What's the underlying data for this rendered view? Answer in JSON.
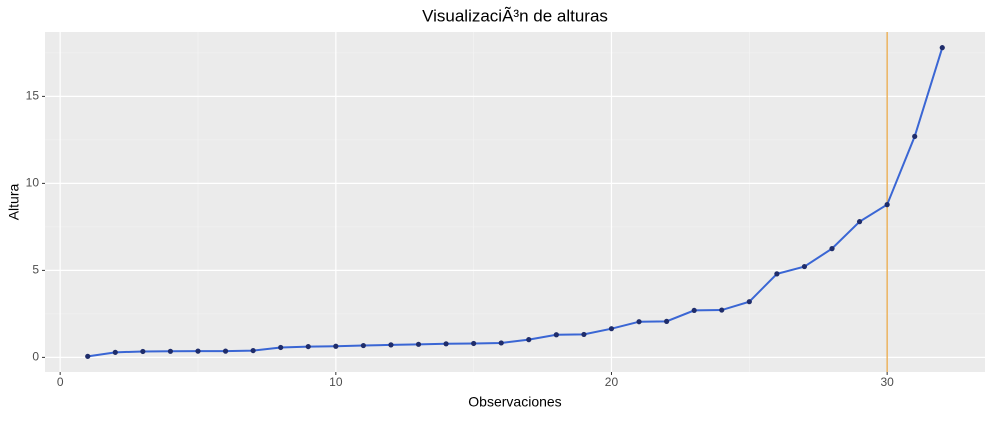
{
  "chart_data": {
    "type": "line",
    "title": "VisualizaciÃ³n de alturas",
    "x_label": "Observaciones",
    "y_label": "Altura",
    "x": [
      1,
      2,
      3,
      4,
      5,
      6,
      7,
      8,
      9,
      10,
      11,
      12,
      13,
      14,
      15,
      16,
      17,
      18,
      19,
      20,
      21,
      22,
      23,
      24,
      25,
      26,
      27,
      28,
      29,
      30,
      31,
      32
    ],
    "series": [
      {
        "name": "Altura",
        "color": "#3a66d4",
        "point_color": "#1f2d6b",
        "values": [
          0.06,
          0.29,
          0.34,
          0.35,
          0.36,
          0.36,
          0.39,
          0.57,
          0.62,
          0.64,
          0.68,
          0.72,
          0.75,
          0.78,
          0.8,
          0.83,
          1.02,
          1.3,
          1.32,
          1.65,
          2.05,
          2.07,
          2.7,
          2.72,
          3.2,
          4.8,
          5.22,
          6.25,
          7.8,
          8.78,
          12.7,
          17.8
        ]
      }
    ],
    "vline": {
      "x": 30,
      "color": "#e8a33a"
    },
    "xlim": [
      -0.55,
      33.55
    ],
    "xticks": [
      0,
      10,
      20,
      30
    ],
    "ylim": [
      -0.84,
      18.7
    ],
    "yticks": [
      0,
      5,
      10,
      15
    ],
    "grid": true
  }
}
